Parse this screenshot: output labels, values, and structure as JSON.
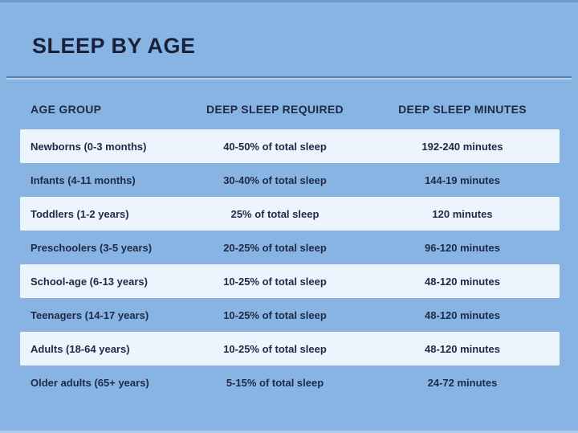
{
  "chart_data": {
    "type": "table",
    "title": "SLEEP BY AGE",
    "columns": [
      "AGE GROUP",
      "DEEP SLEEP REQUIRED",
      "DEEP SLEEP MINUTES"
    ],
    "rows": [
      [
        "Newborns (0-3 months)",
        "40-50% of total sleep",
        "192-240 minutes"
      ],
      [
        "Infants (4-11 months)",
        "30-40% of total sleep",
        "144-19 minutes"
      ],
      [
        "Toddlers (1-2 years)",
        "25% of total sleep",
        "120 minutes"
      ],
      [
        "Preschoolers (3-5 years)",
        "20-25% of total sleep",
        "96-120 minutes"
      ],
      [
        "School-age (6-13 years)",
        "10-25% of total sleep",
        "48-120 minutes"
      ],
      [
        "Teenagers (14-17 years)",
        "10-25% of total sleep",
        "48-120 minutes"
      ],
      [
        "Adults (18-64 years)",
        "10-25% of total sleep",
        "48-120 minutes"
      ],
      [
        "Older adults (65+ years)",
        "5-15% of total sleep",
        "24-72 minutes"
      ]
    ],
    "highlighted_rows": [
      0,
      2,
      4,
      6
    ],
    "layout": {
      "grid": "off",
      "legend": "none",
      "row_striping": "alternating light cards on blue background"
    }
  },
  "colors": {
    "background": "#88b4e4",
    "row-light": "#ecf4fd",
    "text": "#1e2a45",
    "divider-dark": "#5f7da1",
    "divider-light": "#b7d1ee"
  }
}
